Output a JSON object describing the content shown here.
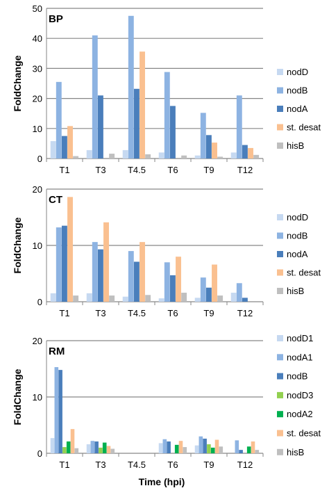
{
  "figure": {
    "xlabel": "Time (hpi)",
    "ylabel": "FoldChange"
  },
  "colors": {
    "nodD": "#c6d9f1",
    "nodB": "#8db3e2",
    "nodA": "#4a7ebb",
    "st_desat": "#fac090",
    "hisB": "#bfbfbf",
    "nodD3": "#92d050",
    "nodA2": "#00b050",
    "gridline": "#868686",
    "axis": "#868686"
  },
  "chart_data": [
    {
      "type": "bar",
      "panel_label": "BP",
      "ylabel": "FoldChange",
      "xlabel": "",
      "ylim": [
        0,
        50
      ],
      "yticks": [
        0,
        10,
        20,
        30,
        40,
        50
      ],
      "grid": true,
      "legend_position": "right",
      "categories": [
        "T1",
        "T3",
        "T4.5",
        "T6",
        "T9",
        "T12"
      ],
      "series": [
        {
          "name": "nodD",
          "color": "#c6d9f1",
          "values": [
            5.8,
            2.8,
            2.8,
            2.0,
            1.0,
            2.0
          ]
        },
        {
          "name": "nodB",
          "color": "#8db3e2",
          "values": [
            25.5,
            41,
            47.5,
            28.8,
            15.2,
            21
          ]
        },
        {
          "name": "nodA",
          "color": "#4a7ebb",
          "values": [
            7.5,
            21,
            23.2,
            17.5,
            7.8,
            4.5
          ]
        },
        {
          "name": "st. desat",
          "color": "#fac090",
          "values": [
            10.8,
            0,
            35.6,
            0,
            5.3,
            3.5
          ]
        },
        {
          "name": "hisB",
          "color": "#bfbfbf",
          "values": [
            0.8,
            1.6,
            1.4,
            1.0,
            0.6,
            1.2
          ]
        }
      ]
    },
    {
      "type": "bar",
      "panel_label": "CT",
      "ylabel": "FoldChange",
      "xlabel": "",
      "ylim": [
        0,
        20
      ],
      "yticks": [
        0,
        10,
        20
      ],
      "grid": true,
      "legend_position": "right",
      "categories": [
        "T1",
        "T3",
        "T4.5",
        "T6",
        "T9",
        "T12"
      ],
      "series": [
        {
          "name": "nodD",
          "color": "#c6d9f1",
          "values": [
            1.5,
            1.5,
            0.9,
            0.6,
            0.7,
            1.6
          ]
        },
        {
          "name": "nodB",
          "color": "#8db3e2",
          "values": [
            13.2,
            10.6,
            9.0,
            7.0,
            4.3,
            3.3
          ]
        },
        {
          "name": "nodA",
          "color": "#4a7ebb",
          "values": [
            13.5,
            9.3,
            7.1,
            4.7,
            2.5,
            0.7
          ]
        },
        {
          "name": "st. desat",
          "color": "#fac090",
          "values": [
            18.6,
            14.1,
            10.6,
            8.0,
            6.6,
            0
          ]
        },
        {
          "name": "hisB",
          "color": "#bfbfbf",
          "values": [
            1.1,
            1.1,
            1.2,
            1.6,
            1.1,
            0
          ]
        }
      ]
    },
    {
      "type": "bar",
      "panel_label": "RM",
      "ylabel": "FoldChange",
      "xlabel": "Time (hpi)",
      "ylim": [
        0,
        20
      ],
      "yticks": [
        0,
        10,
        20
      ],
      "grid": true,
      "legend_position": "right",
      "categories": [
        "T1",
        "T3",
        "T4.5",
        "T6",
        "T9",
        "T12"
      ],
      "series": [
        {
          "name": "nodD1",
          "color": "#c6d9f1",
          "values": [
            2.7,
            1.6,
            0,
            1.8,
            1.4,
            0
          ]
        },
        {
          "name": "nodA1",
          "color": "#8db3e2",
          "values": [
            15.3,
            2.2,
            0,
            2.5,
            3.0,
            2.3
          ]
        },
        {
          "name": "nodB",
          "color": "#4a7ebb",
          "values": [
            14.8,
            2.1,
            0,
            2.1,
            2.6,
            0.6
          ]
        },
        {
          "name": "nodD3",
          "color": "#92d050",
          "values": [
            1.1,
            1.0,
            0,
            0,
            1.6,
            0
          ]
        },
        {
          "name": "nodA2",
          "color": "#00b050",
          "values": [
            2.1,
            1.9,
            0,
            1.5,
            1.0,
            1.2
          ]
        },
        {
          "name": "st. desat",
          "color": "#fac090",
          "values": [
            4.3,
            1.3,
            0,
            2.2,
            2.4,
            2.1
          ]
        },
        {
          "name": "hisB",
          "color": "#bfbfbf",
          "values": [
            0.9,
            0.8,
            0,
            1.1,
            1.2,
            0.6
          ]
        }
      ]
    }
  ]
}
